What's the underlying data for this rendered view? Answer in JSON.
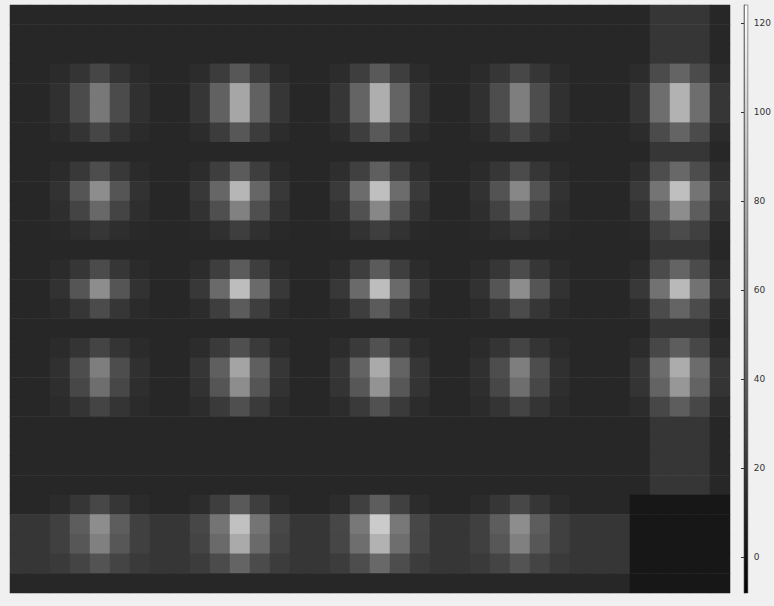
{
  "chart_data": {
    "type": "heatmap",
    "tick_labels": false,
    "cells": [
      [
        12,
        12,
        12,
        12,
        12,
        12,
        12,
        12,
        12,
        12,
        12,
        12,
        12,
        12,
        12,
        12,
        12,
        12,
        12,
        12,
        12,
        12,
        12,
        12,
        12,
        12,
        12,
        12,
        12,
        12,
        12,
        12,
        20,
        20,
        20,
        12
      ],
      [
        12,
        12,
        12,
        12,
        12,
        12,
        12,
        12,
        12,
        12,
        12,
        12,
        12,
        12,
        12,
        12,
        12,
        12,
        12,
        12,
        12,
        12,
        12,
        12,
        12,
        12,
        12,
        12,
        12,
        12,
        12,
        12,
        20,
        20,
        20,
        12
      ],
      [
        12,
        12,
        12,
        12,
        12,
        12,
        12,
        12,
        12,
        12,
        12,
        12,
        12,
        12,
        12,
        12,
        12,
        12,
        12,
        12,
        12,
        12,
        12,
        12,
        12,
        12,
        12,
        12,
        12,
        12,
        12,
        12,
        20,
        20,
        20,
        12
      ],
      [
        12,
        12,
        14,
        19,
        28,
        19,
        14,
        12,
        12,
        15,
        23,
        37,
        23,
        15,
        12,
        12,
        15,
        24,
        38,
        24,
        15,
        12,
        12,
        14,
        20,
        29,
        20,
        14,
        12,
        12,
        12,
        15,
        31,
        44,
        31,
        15
      ],
      [
        12,
        12,
        17,
        31,
        54,
        31,
        17,
        12,
        12,
        20,
        42,
        78,
        42,
        20,
        12,
        12,
        20,
        44,
        82,
        44,
        20,
        12,
        12,
        17,
        32,
        57,
        32,
        17,
        12,
        12,
        12,
        20,
        49,
        84,
        49,
        20
      ],
      [
        12,
        12,
        17,
        31,
        54,
        31,
        17,
        12,
        12,
        20,
        42,
        78,
        42,
        20,
        12,
        12,
        20,
        44,
        82,
        44,
        20,
        12,
        12,
        17,
        32,
        57,
        32,
        17,
        12,
        12,
        12,
        20,
        49,
        84,
        49,
        20
      ],
      [
        12,
        12,
        14,
        19,
        28,
        19,
        14,
        12,
        12,
        15,
        23,
        37,
        23,
        15,
        12,
        12,
        15,
        24,
        38,
        24,
        15,
        12,
        12,
        14,
        20,
        29,
        20,
        14,
        12,
        12,
        12,
        15,
        31,
        44,
        31,
        15
      ],
      [
        12,
        12,
        12,
        12,
        12,
        12,
        12,
        12,
        12,
        12,
        12,
        12,
        12,
        12,
        12,
        12,
        12,
        12,
        12,
        12,
        12,
        12,
        12,
        12,
        12,
        12,
        12,
        12,
        12,
        12,
        12,
        12,
        20,
        20,
        20,
        12
      ],
      [
        12,
        12,
        14,
        21,
        32,
        21,
        14,
        12,
        12,
        15,
        24,
        39,
        24,
        15,
        12,
        12,
        16,
        25,
        41,
        25,
        16,
        12,
        12,
        14,
        20,
        31,
        20,
        14,
        12,
        12,
        12,
        16,
        32,
        46,
        32,
        16
      ],
      [
        12,
        12,
        18,
        36,
        65,
        36,
        18,
        12,
        12,
        21,
        45,
        86,
        45,
        21,
        12,
        12,
        22,
        48,
        91,
        48,
        22,
        12,
        12,
        18,
        35,
        62,
        35,
        18,
        12,
        12,
        12,
        22,
        52,
        91,
        52,
        22
      ],
      [
        12,
        12,
        16,
        27,
        46,
        27,
        16,
        12,
        12,
        18,
        33,
        59,
        33,
        18,
        12,
        12,
        18,
        34,
        62,
        34,
        18,
        12,
        12,
        16,
        26,
        44,
        26,
        16,
        12,
        12,
        12,
        18,
        40,
        65,
        40,
        18
      ],
      [
        12,
        12,
        13,
        16,
        20,
        16,
        13,
        12,
        12,
        13,
        17,
        24,
        17,
        13,
        12,
        12,
        13,
        18,
        24,
        18,
        13,
        12,
        12,
        13,
        16,
        20,
        16,
        13,
        12,
        12,
        12,
        13,
        25,
        31,
        25,
        13
      ],
      [
        12,
        12,
        12,
        12,
        12,
        12,
        12,
        12,
        12,
        12,
        12,
        12,
        12,
        12,
        12,
        12,
        12,
        12,
        12,
        12,
        12,
        12,
        12,
        12,
        12,
        12,
        12,
        12,
        12,
        12,
        12,
        12,
        20,
        20,
        20,
        12
      ],
      [
        12,
        12,
        14,
        20,
        31,
        20,
        14,
        12,
        12,
        15,
        24,
        39,
        24,
        15,
        12,
        12,
        15,
        24,
        39,
        24,
        15,
        12,
        12,
        14,
        20,
        31,
        20,
        14,
        12,
        12,
        12,
        15,
        31,
        44,
        31,
        15
      ],
      [
        12,
        12,
        18,
        36,
        65,
        36,
        18,
        12,
        12,
        21,
        47,
        90,
        47,
        21,
        12,
        12,
        21,
        47,
        90,
        47,
        21,
        12,
        12,
        18,
        36,
        65,
        36,
        18,
        12,
        12,
        12,
        21,
        51,
        88,
        51,
        21
      ],
      [
        12,
        12,
        14,
        20,
        31,
        20,
        14,
        12,
        12,
        15,
        24,
        39,
        24,
        15,
        12,
        12,
        15,
        24,
        39,
        24,
        15,
        12,
        12,
        14,
        20,
        31,
        20,
        14,
        12,
        12,
        12,
        15,
        31,
        44,
        31,
        15
      ],
      [
        12,
        12,
        12,
        12,
        12,
        12,
        12,
        12,
        12,
        12,
        12,
        12,
        12,
        12,
        12,
        12,
        12,
        12,
        12,
        12,
        12,
        12,
        12,
        12,
        12,
        12,
        12,
        12,
        12,
        12,
        12,
        12,
        20,
        20,
        20,
        12
      ],
      [
        12,
        12,
        14,
        19,
        27,
        19,
        14,
        12,
        12,
        15,
        22,
        33,
        22,
        15,
        12,
        12,
        15,
        22,
        34,
        22,
        15,
        12,
        12,
        14,
        19,
        27,
        19,
        14,
        12,
        12,
        12,
        15,
        29,
        40,
        29,
        15
      ],
      [
        12,
        12,
        17,
        32,
        57,
        32,
        17,
        12,
        12,
        20,
        41,
        77,
        41,
        20,
        12,
        12,
        20,
        43,
        80,
        43,
        20,
        12,
        12,
        17,
        32,
        57,
        32,
        17,
        12,
        12,
        12,
        20,
        48,
        81,
        48,
        20
      ],
      [
        12,
        12,
        16,
        29,
        49,
        29,
        16,
        12,
        12,
        18,
        36,
        65,
        36,
        18,
        12,
        12,
        19,
        37,
        68,
        37,
        19,
        12,
        12,
        16,
        29,
        49,
        29,
        16,
        12,
        12,
        12,
        19,
        43,
        70,
        43,
        19
      ],
      [
        12,
        12,
        14,
        19,
        27,
        19,
        14,
        12,
        12,
        15,
        22,
        33,
        22,
        15,
        12,
        12,
        15,
        22,
        34,
        22,
        15,
        12,
        12,
        14,
        19,
        27,
        19,
        14,
        12,
        12,
        12,
        15,
        29,
        40,
        29,
        15
      ],
      [
        12,
        12,
        12,
        12,
        12,
        12,
        12,
        12,
        12,
        12,
        12,
        12,
        12,
        12,
        12,
        12,
        12,
        12,
        12,
        12,
        12,
        12,
        12,
        12,
        12,
        12,
        12,
        12,
        12,
        12,
        12,
        12,
        20,
        20,
        20,
        12
      ],
      [
        12,
        12,
        12,
        12,
        12,
        12,
        12,
        12,
        12,
        12,
        12,
        12,
        12,
        12,
        12,
        12,
        12,
        12,
        12,
        12,
        12,
        12,
        12,
        12,
        12,
        12,
        12,
        12,
        12,
        12,
        12,
        12,
        20,
        20,
        20,
        12
      ],
      [
        12,
        12,
        12,
        12,
        12,
        12,
        12,
        12,
        12,
        12,
        12,
        12,
        12,
        12,
        12,
        12,
        12,
        12,
        12,
        12,
        12,
        12,
        12,
        12,
        12,
        12,
        12,
        12,
        12,
        12,
        12,
        12,
        20,
        20,
        20,
        12
      ],
      [
        12,
        12,
        12,
        12,
        12,
        12,
        12,
        12,
        12,
        12,
        12,
        12,
        12,
        12,
        12,
        12,
        12,
        12,
        12,
        12,
        12,
        12,
        12,
        12,
        12,
        12,
        12,
        12,
        12,
        12,
        12,
        12,
        20,
        20,
        20,
        12
      ],
      [
        12,
        12,
        14,
        20,
        29,
        20,
        14,
        12,
        12,
        15,
        24,
        38,
        24,
        15,
        12,
        12,
        15,
        25,
        40,
        25,
        15,
        12,
        12,
        14,
        20,
        29,
        20,
        14,
        12,
        12,
        12,
        4,
        4,
        4,
        4,
        4
      ],
      [
        20,
        20,
        25,
        40,
        65,
        40,
        25,
        20,
        20,
        29,
        52,
        92,
        52,
        29,
        20,
        20,
        29,
        54,
        97,
        54,
        29,
        20,
        20,
        25,
        40,
        65,
        40,
        25,
        20,
        20,
        20,
        4,
        4,
        4,
        4,
        4
      ],
      [
        20,
        20,
        25,
        37,
        58,
        37,
        25,
        20,
        20,
        27,
        47,
        80,
        47,
        27,
        20,
        20,
        28,
        49,
        84,
        49,
        28,
        20,
        20,
        25,
        37,
        58,
        37,
        25,
        20,
        20,
        20,
        4,
        4,
        4,
        4,
        4
      ],
      [
        20,
        20,
        22,
        27,
        35,
        27,
        22,
        20,
        20,
        23,
        31,
        44,
        31,
        23,
        20,
        20,
        23,
        32,
        46,
        32,
        23,
        20,
        20,
        22,
        27,
        35,
        27,
        22,
        20,
        20,
        20,
        4,
        4,
        4,
        4,
        4
      ],
      [
        12,
        12,
        12,
        12,
        12,
        12,
        12,
        12,
        12,
        12,
        12,
        12,
        12,
        12,
        12,
        12,
        12,
        12,
        12,
        12,
        12,
        12,
        12,
        12,
        12,
        12,
        12,
        12,
        12,
        12,
        12,
        4,
        4,
        4,
        4,
        4
      ]
    ],
    "colorbar": {
      "range": [
        -8,
        124
      ],
      "ticks": [
        0,
        20,
        40,
        60,
        80,
        100,
        120
      ]
    }
  }
}
